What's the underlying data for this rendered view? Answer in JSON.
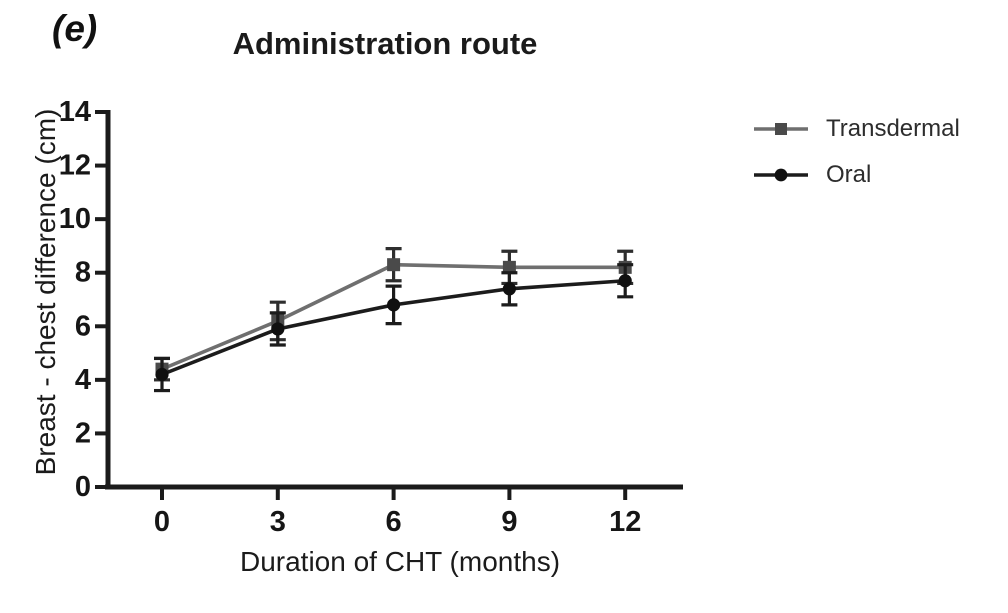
{
  "figure": {
    "panel_label": "(e)"
  },
  "chart_data": {
    "type": "line",
    "title": "Administration route",
    "xlabel": "Duration of CHT (months)",
    "ylabel": "Breast - chest difference (cm)",
    "x": [
      0,
      3,
      6,
      9,
      12
    ],
    "xticks": [
      0,
      3,
      6,
      9,
      12
    ],
    "yticks": [
      0,
      2,
      4,
      6,
      8,
      10,
      12,
      14
    ],
    "xlim": [
      -1.5,
      13.5
    ],
    "ylim": [
      0,
      14
    ],
    "grid": false,
    "error_bars": true,
    "legend_position": "right-outside",
    "axis_color": "#1b1b1b",
    "text_color": "#1b1b1b",
    "series": [
      {
        "name": "Transdermal",
        "marker": "square",
        "line_color": "#6f6f6f",
        "marker_color": "#4a4a4a",
        "error_color": "#2e2e2e",
        "values": [
          4.4,
          6.2,
          8.3,
          8.2,
          8.2
        ],
        "errors": [
          0.4,
          0.7,
          0.6,
          0.6,
          0.6
        ]
      },
      {
        "name": "Oral",
        "marker": "circle",
        "line_color": "#1c1c1c",
        "marker_color": "#101010",
        "error_color": "#1c1c1c",
        "values": [
          4.2,
          5.9,
          6.8,
          7.4,
          7.7
        ],
        "errors": [
          0.6,
          0.6,
          0.7,
          0.6,
          0.6
        ]
      }
    ]
  }
}
